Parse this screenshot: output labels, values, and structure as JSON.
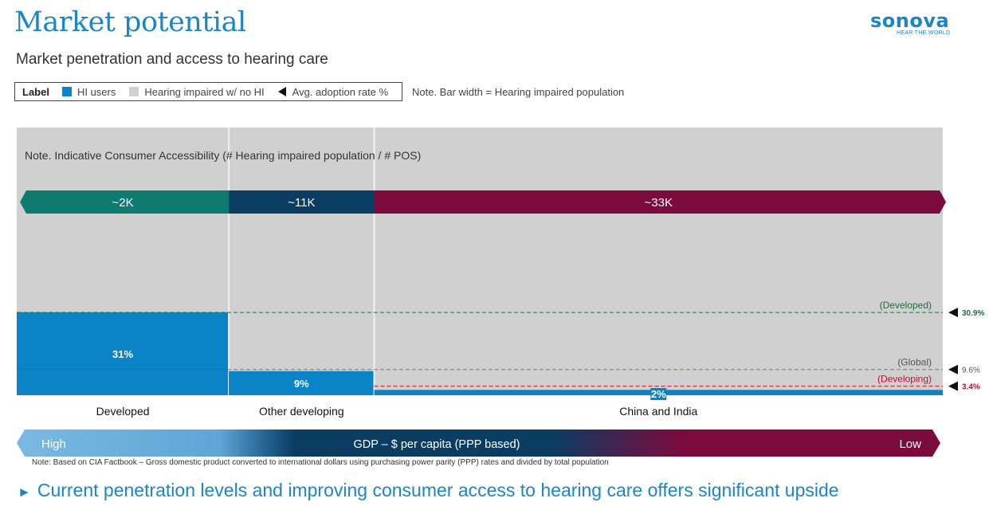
{
  "header": {
    "title": "Market potential",
    "subtitle": "Market penetration and access to hearing care"
  },
  "logo": {
    "wordmark": "sonova",
    "tagline": "HEAR THE WORLD"
  },
  "legend": {
    "label": "Label",
    "items": [
      {
        "text": "HI users",
        "color": "#0a84c6"
      },
      {
        "text": "Hearing impaired w/ no HI",
        "color": "#d0d0d0"
      },
      {
        "text": "Avg. adoption rate %",
        "icon": "left-triangle-marker"
      }
    ],
    "note": "Note. Bar width = Hearing impaired population"
  },
  "chart_data": {
    "type": "bar",
    "variant": "marimekko",
    "note": "Note. Indicative Consumer Accessibility (# Hearing impaired population / # POS)",
    "categories": [
      "Developed",
      "Other developing",
      "China and India"
    ],
    "series": [
      {
        "name": "HI users",
        "values": [
          31,
          9,
          2
        ],
        "labels": [
          "31%",
          "9%",
          "2%"
        ],
        "color": "#0a84c6"
      },
      {
        "name": "Hearing impaired w/ no HI",
        "values": [
          69,
          91,
          98
        ],
        "color": "#d0d0d0"
      }
    ],
    "bar_widths_relative": [
      0.229,
      0.157,
      0.614
    ],
    "accessibility": [
      {
        "label": "~2K",
        "color": "#0e7a70"
      },
      {
        "label": "~11K",
        "color": "#0b3d62"
      },
      {
        "label": "~33K",
        "color": "#7b0a3d"
      }
    ],
    "reference_lines": [
      {
        "name": "(Developed)",
        "value": 30.9,
        "label": "30.9%",
        "color": "#1a6f3a"
      },
      {
        "name": "(Global)",
        "value": 9.6,
        "label": "9.6%",
        "color": "#555555"
      },
      {
        "name": "(Developing)",
        "value": 3.4,
        "label": "3.4%",
        "color": "#c0122e"
      }
    ],
    "ylim": [
      0,
      100
    ],
    "gdp_axis": {
      "label": "GDP – $ per capita (PPP based)",
      "left": "High",
      "right": "Low"
    }
  },
  "footnote": "Note: Based on CIA Factbook – Gross domestic product converted to international dollars using purchasing power parity (PPP) rates and divided by total population",
  "takeaway": {
    "arrow": "►",
    "text": "Current penetration levels and improving consumer access to hearing care offers significant upside"
  }
}
